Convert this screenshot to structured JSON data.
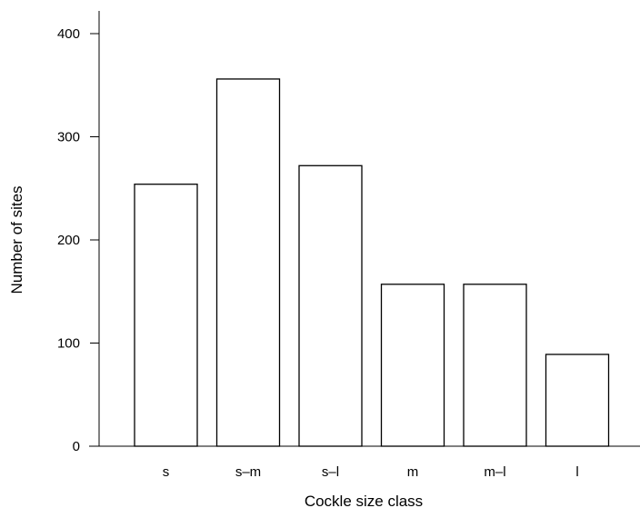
{
  "chart_data": {
    "type": "bar",
    "title": "",
    "xlabel": "Cockle size class",
    "ylabel": "Number of sites",
    "categories": [
      "s",
      "s–m",
      "s–l",
      "m",
      "m–l",
      "l"
    ],
    "values": [
      254,
      356,
      272,
      157,
      157,
      89
    ],
    "ylim": [
      0,
      400
    ],
    "yticks": [
      "0",
      "100",
      "200",
      "300",
      "400"
    ],
    "grid": false,
    "legend": "none",
    "bar_fill": "#ffffff",
    "bar_stroke": "#000000"
  }
}
